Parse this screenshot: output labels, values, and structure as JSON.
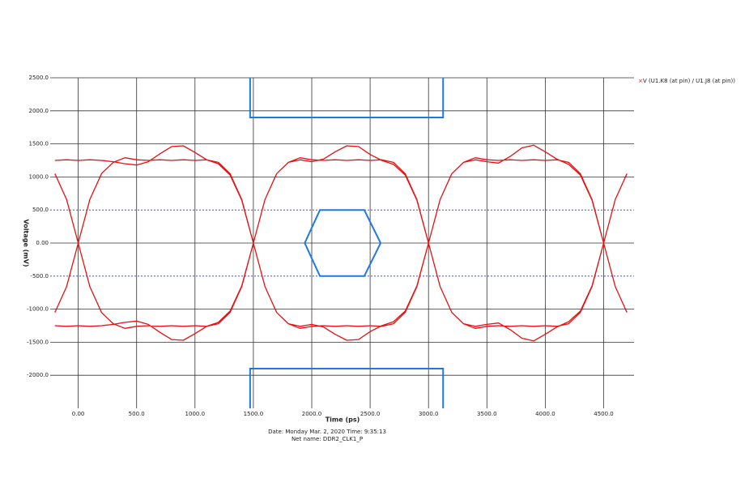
{
  "chart_data": {
    "type": "line",
    "x_label": "Time  (ps)",
    "y_label": "Voltage  (mV)",
    "footer": [
      "Date: Monday Mar. 2, 2020   Time: 9:35:13",
      "Net name: DDR2_CLK1_P"
    ],
    "xlim": [
      -240,
      4760
    ],
    "ylim": [
      -2500,
      2500
    ],
    "xticks": [
      {
        "value": 0,
        "label": "0.00"
      },
      {
        "value": 500,
        "label": "500.0"
      },
      {
        "value": 1000,
        "label": "1000.0"
      },
      {
        "value": 1500,
        "label": "1500.0"
      },
      {
        "value": 2000,
        "label": "2000.0"
      },
      {
        "value": 2500,
        "label": "2500.0"
      },
      {
        "value": 3000,
        "label": "3000.0"
      },
      {
        "value": 3500,
        "label": "3500.0"
      },
      {
        "value": 4000,
        "label": "4000.0"
      },
      {
        "value": 4500,
        "label": "4500.0"
      }
    ],
    "yticks": [
      {
        "value": 2500,
        "label": "2500.0"
      },
      {
        "value": 2000,
        "label": "2000.0"
      },
      {
        "value": 1500,
        "label": "1500.0"
      },
      {
        "value": 1000,
        "label": "1000.0"
      },
      {
        "value": 500,
        "label": "500.0"
      },
      {
        "value": 0,
        "label": "0.00"
      },
      {
        "value": -500,
        "label": "-500.0"
      },
      {
        "value": -1000,
        "label": "-1000.0"
      },
      {
        "value": -1500,
        "label": "-1500.0"
      },
      {
        "value": -2000,
        "label": "-2000.0"
      }
    ],
    "grid": true,
    "reference_lines": [
      500,
      -500
    ],
    "reference_color": "#3a3aa0",
    "mask_color": "#1e78e6",
    "masks": [
      {
        "x": [
          1940,
          2070,
          2450,
          2590,
          2450,
          2070,
          1940
        ],
        "y": [
          0,
          500,
          500,
          0,
          -500,
          -500,
          0
        ]
      },
      {
        "x": [
          1472,
          1472,
          3125,
          3125
        ],
        "y": [
          2500,
          1900,
          1900,
          2500
        ]
      },
      {
        "x": [
          1472,
          1472,
          3125,
          3125
        ],
        "y": [
          -2500,
          -1900,
          -1900,
          -2500
        ]
      }
    ],
    "legend": "top-right",
    "series": [
      {
        "name": "V (U1.K8 (at pin) / U1.J8 (at pin))",
        "color": "#e81010",
        "x": [
          -200,
          -100,
          0,
          100,
          200,
          300,
          400,
          500,
          600,
          700,
          800,
          900,
          1000,
          1100,
          1200,
          1300,
          1400,
          1500,
          1600,
          1700,
          1800,
          1900,
          2000,
          2100,
          2200,
          2300,
          2400,
          2500,
          2600,
          2700,
          2800,
          2900,
          3000,
          3100,
          3200,
          3300,
          3400,
          3500,
          3600,
          3700,
          3800,
          3900,
          4000,
          4100,
          4200,
          4300,
          4400,
          4500,
          4600,
          4700,
          null,
          -200,
          -100,
          0,
          100,
          200,
          300,
          400,
          500,
          600,
          700,
          800,
          900,
          1000,
          1100,
          1200,
          1300,
          1400,
          1500,
          1600,
          1700,
          1800,
          1900,
          2000,
          2100,
          2200,
          2300,
          2400,
          2500,
          2600,
          2700,
          2800,
          2900,
          3000,
          3100,
          3200,
          3300,
          3400,
          3500,
          3600,
          3700,
          3800,
          3900,
          4000,
          4100,
          4200,
          4300,
          4400,
          4500,
          4600,
          4700,
          null,
          -200,
          -100,
          0,
          100,
          200,
          300,
          400,
          500,
          600,
          700,
          800,
          900,
          1000,
          1100,
          1200,
          1300,
          1400,
          1500,
          1600,
          1700,
          1800,
          1900,
          2000,
          2100,
          2200,
          2300,
          2400,
          2500,
          2600,
          2700,
          2800,
          2900,
          3000,
          3100,
          3200,
          3300,
          3400,
          3500,
          3600,
          3700,
          3800,
          3900,
          4000,
          4100,
          4200,
          4300,
          4400,
          4500,
          4600,
          4700,
          null,
          -200,
          -100,
          0,
          100,
          200,
          300,
          400,
          500,
          600,
          700,
          800,
          900,
          1000,
          1100,
          1200,
          1300,
          1400,
          1500,
          1600,
          1700,
          1800,
          1900,
          2000,
          2100,
          2200,
          2300,
          2400,
          2500,
          2600,
          2700,
          2800,
          2900,
          3000,
          3100,
          3200,
          3300,
          3400,
          3500,
          3600,
          3700,
          3800,
          3900,
          4000,
          4100,
          4200,
          4300,
          4400,
          4500,
          4600,
          4700
        ],
        "values": [
          1050,
          660,
          0,
          -660,
          -1050,
          -1220,
          -1290,
          -1260,
          -1250,
          -1260,
          -1250,
          -1260,
          -1250,
          -1260,
          -1220,
          -1050,
          -660,
          0,
          660,
          1050,
          1220,
          1290,
          1260,
          1250,
          1260,
          1250,
          1260,
          1250,
          1260,
          1220,
          1050,
          660,
          0,
          -660,
          -1050,
          -1220,
          -1290,
          -1260,
          -1250,
          -1260,
          -1250,
          -1260,
          -1250,
          -1260,
          -1220,
          -1050,
          -660,
          0,
          660,
          1050,
          null,
          -1050,
          -660,
          0,
          660,
          1050,
          1220,
          1290,
          1260,
          1250,
          1260,
          1250,
          1260,
          1250,
          1260,
          1220,
          1050,
          660,
          0,
          -660,
          -1050,
          -1220,
          -1290,
          -1260,
          -1250,
          -1260,
          -1250,
          -1260,
          -1250,
          -1260,
          -1220,
          -1050,
          -660,
          0,
          660,
          1050,
          1220,
          1290,
          1260,
          1250,
          1260,
          1250,
          1260,
          1250,
          1260,
          1220,
          1050,
          660,
          0,
          -660,
          -1050,
          null,
          1250,
          1260,
          1250,
          1260,
          1250,
          1230,
          1200,
          1180,
          1230,
          1350,
          1460,
          1470,
          1370,
          1260,
          1200,
          1030,
          650,
          0,
          -660,
          -1050,
          -1220,
          -1260,
          -1230,
          -1270,
          -1380,
          -1470,
          -1460,
          -1340,
          -1250,
          -1190,
          -1030,
          -650,
          0,
          660,
          1050,
          1220,
          1260,
          1230,
          1210,
          1310,
          1440,
          1480,
          1380,
          1270,
          1190,
          1030,
          650,
          0,
          -660,
          -1050,
          null,
          -1250,
          -1260,
          -1250,
          -1260,
          -1250,
          -1230,
          -1200,
          -1180,
          -1230,
          -1350,
          -1460,
          -1470,
          -1370,
          -1260,
          -1200,
          -1030,
          -650,
          0,
          660,
          1050,
          1220,
          1260,
          1230,
          1270,
          1380,
          1470,
          1460,
          1340,
          1250,
          1190,
          1030,
          650,
          0,
          -660,
          -1050,
          -1220,
          -1260,
          -1230,
          -1210,
          -1310,
          -1440,
          -1480,
          -1380,
          -1270,
          -1190,
          -1030,
          -650,
          0,
          660,
          1050
        ]
      }
    ]
  }
}
